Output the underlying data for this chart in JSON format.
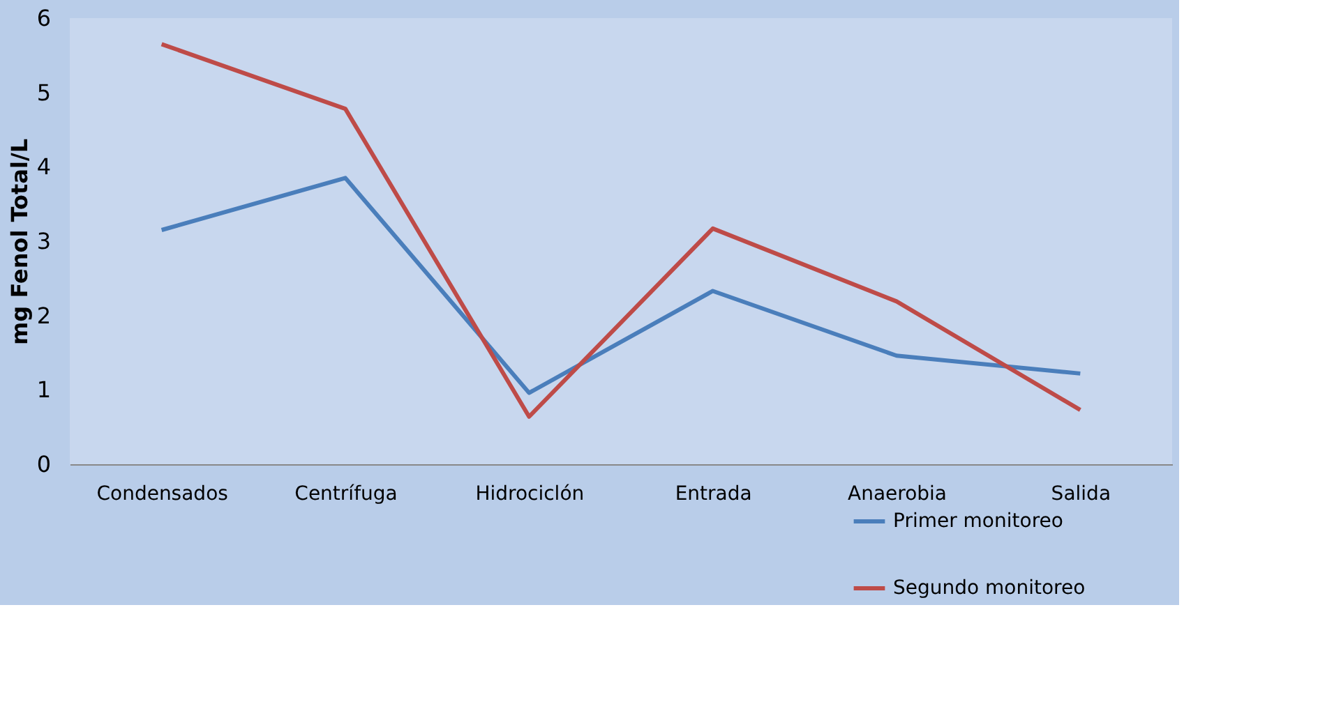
{
  "chart_data": {
    "type": "line",
    "ylabel": "mg Fenol Total/L",
    "categories": [
      "Condensados",
      "Centrífuga",
      "Hidrociclón",
      "Entrada",
      "Anaerobia",
      "Salida"
    ],
    "series": [
      {
        "name": "Primer monitoreo",
        "color": "#4a7ebb",
        "values": [
          3.15,
          3.85,
          0.96,
          2.33,
          1.46,
          1.22
        ]
      },
      {
        "name": "Segundo monitoreo",
        "color": "#be4b48",
        "values": [
          5.65,
          4.78,
          0.64,
          3.17,
          2.19,
          0.73
        ]
      }
    ],
    "ylim": [
      0,
      6
    ],
    "yticks": [
      0,
      1,
      2,
      3,
      4,
      5,
      6
    ],
    "grid": false,
    "legend": "bottom right",
    "marker": "none",
    "line_style": "solid"
  }
}
